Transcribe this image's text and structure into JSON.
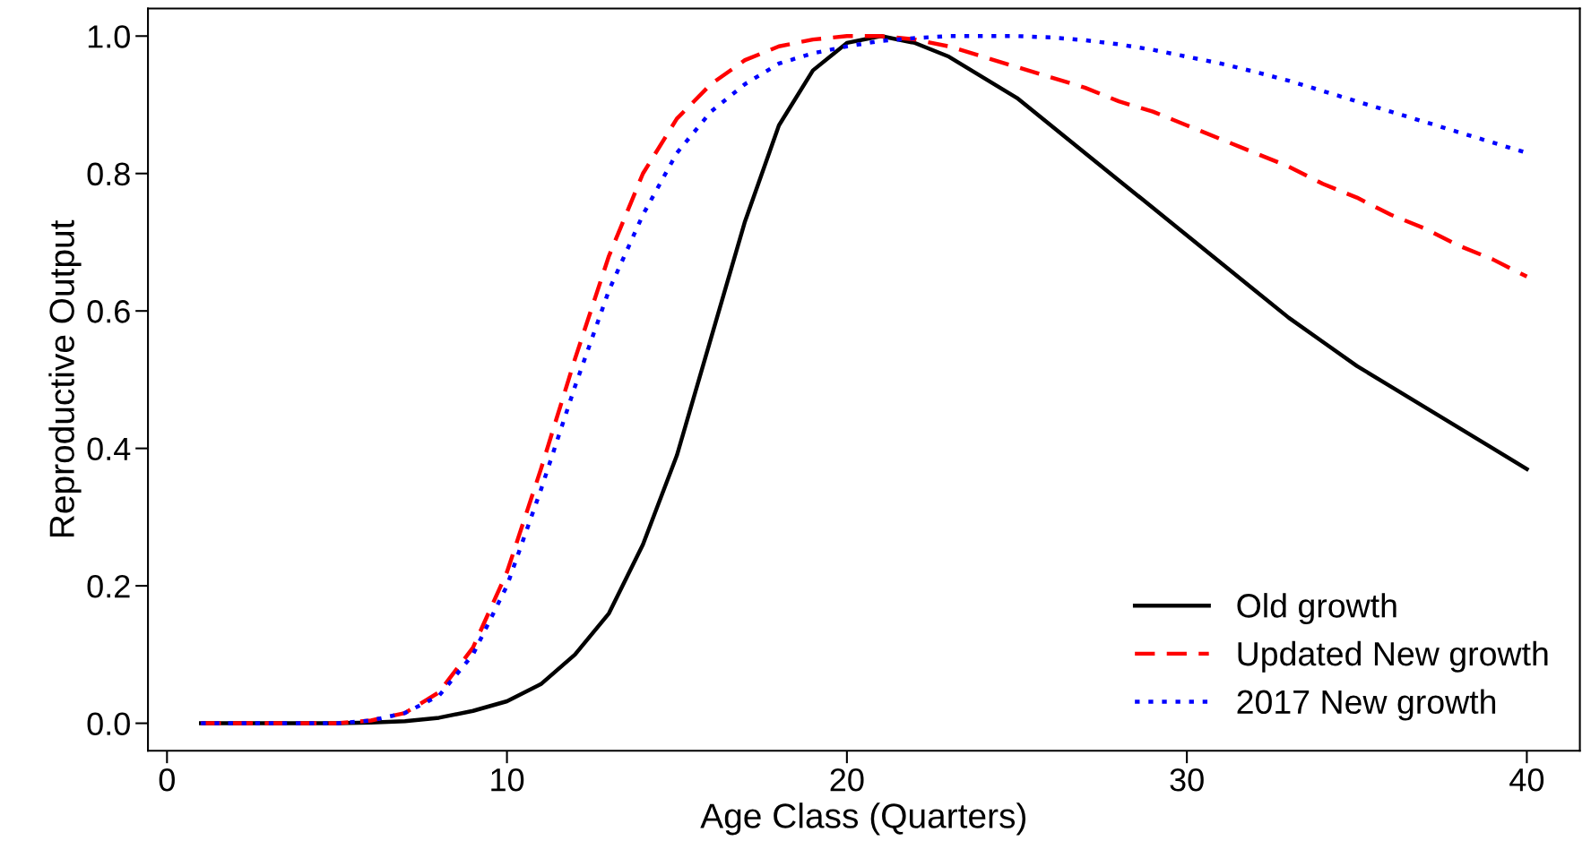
{
  "chart_data": {
    "type": "line",
    "xlabel": "Age Class (Quarters)",
    "ylabel": "Reproductive Output",
    "x": [
      1,
      2,
      3,
      4,
      5,
      6,
      7,
      8,
      9,
      10,
      11,
      12,
      13,
      14,
      15,
      16,
      17,
      18,
      19,
      20,
      21,
      22,
      23,
      24,
      25,
      26,
      27,
      28,
      29,
      30,
      31,
      32,
      33,
      34,
      35,
      36,
      37,
      38,
      39,
      40
    ],
    "series": [
      {
        "name": "Old growth",
        "color": "#000000",
        "line_style": "solid",
        "values": [
          0,
          0,
          0,
          0,
          0,
          0.001,
          0.003,
          0.008,
          0.018,
          0.032,
          0.057,
          0.1,
          0.16,
          0.26,
          0.39,
          0.56,
          0.73,
          0.87,
          0.95,
          0.99,
          1.0,
          0.99,
          0.97,
          0.94,
          0.91,
          0.87,
          0.83,
          0.79,
          0.75,
          0.71,
          0.67,
          0.63,
          0.59,
          0.555,
          0.52,
          0.49,
          0.46,
          0.43,
          0.4,
          0.37
        ]
      },
      {
        "name": "Updated New growth",
        "color": "#ff0000",
        "line_style": "dashed",
        "values": [
          0,
          0,
          0,
          0,
          0,
          0.004,
          0.015,
          0.045,
          0.11,
          0.22,
          0.37,
          0.53,
          0.68,
          0.8,
          0.88,
          0.93,
          0.965,
          0.985,
          0.995,
          1.0,
          1.0,
          0.995,
          0.985,
          0.97,
          0.955,
          0.94,
          0.925,
          0.905,
          0.89,
          0.87,
          0.85,
          0.83,
          0.81,
          0.785,
          0.765,
          0.74,
          0.72,
          0.695,
          0.675,
          0.65
        ]
      },
      {
        "name": "2017 New growth",
        "color": "#0000ff",
        "line_style": "dotted",
        "values": [
          0,
          0,
          0,
          0,
          0,
          0.004,
          0.015,
          0.04,
          0.1,
          0.2,
          0.34,
          0.49,
          0.63,
          0.74,
          0.83,
          0.89,
          0.93,
          0.96,
          0.975,
          0.985,
          0.993,
          0.997,
          1.0,
          1.0,
          1.0,
          0.998,
          0.994,
          0.988,
          0.98,
          0.97,
          0.96,
          0.948,
          0.935,
          0.92,
          0.905,
          0.89,
          0.875,
          0.86,
          0.845,
          0.83
        ]
      }
    ],
    "xlim": [
      -0.56,
      41.56
    ],
    "ylim": [
      -0.04,
      1.04
    ],
    "xticks": [
      0,
      10,
      20,
      30,
      40
    ],
    "yticks": [
      {
        "value": 0,
        "label": "0.0"
      },
      {
        "value": 0.2,
        "label": "0.2"
      },
      {
        "value": 0.4,
        "label": "0.4"
      },
      {
        "value": 0.6,
        "label": "0.6"
      },
      {
        "value": 0.8,
        "label": "0.8"
      },
      {
        "value": 1.0,
        "label": "1.0"
      }
    ],
    "grid": false,
    "legend": "bottom right",
    "marker": "none"
  }
}
